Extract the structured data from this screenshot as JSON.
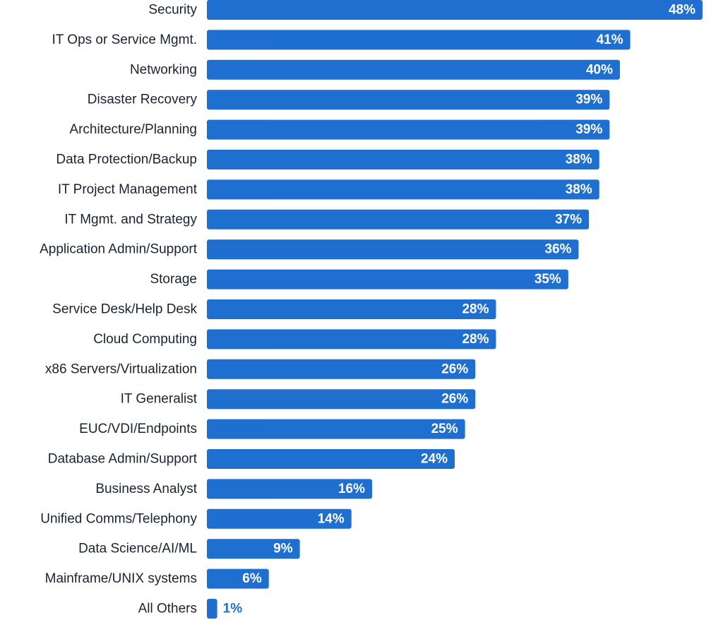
{
  "chart_data": {
    "type": "bar",
    "orientation": "horizontal",
    "title": "",
    "xlabel": "",
    "ylabel": "",
    "value_suffix": "%",
    "xlim": [
      0,
      48
    ],
    "grid": false,
    "bar_color": "#1f6fd1",
    "label_color": "#1a2330",
    "categories": [
      "Security",
      "IT Ops or Service Mgmt.",
      "Networking",
      "Disaster Recovery",
      "Architecture/Planning",
      "Data Protection/Backup",
      "IT Project Management",
      "IT Mgmt. and Strategy",
      "Application Admin/Support",
      "Storage",
      "Service Desk/Help Desk",
      "Cloud Computing",
      "x86 Servers/Virtualization",
      "IT Generalist",
      "EUC/VDI/Endpoints",
      "Database Admin/Support",
      "Business Analyst",
      "Unified Comms/Telephony",
      "Data Science/AI/ML",
      "Mainframe/UNIX systems",
      "All Others"
    ],
    "values": [
      48,
      41,
      40,
      39,
      39,
      38,
      38,
      37,
      36,
      35,
      28,
      28,
      26,
      26,
      25,
      24,
      16,
      14,
      9,
      6,
      1
    ],
    "value_labels": [
      "48%",
      "41%",
      "40%",
      "39%",
      "39%",
      "38%",
      "38%",
      "37%",
      "36%",
      "35%",
      "28%",
      "28%",
      "26%",
      "26%",
      "25%",
      "24%",
      "16%",
      "14%",
      "9%",
      "6%",
      "1%"
    ]
  }
}
